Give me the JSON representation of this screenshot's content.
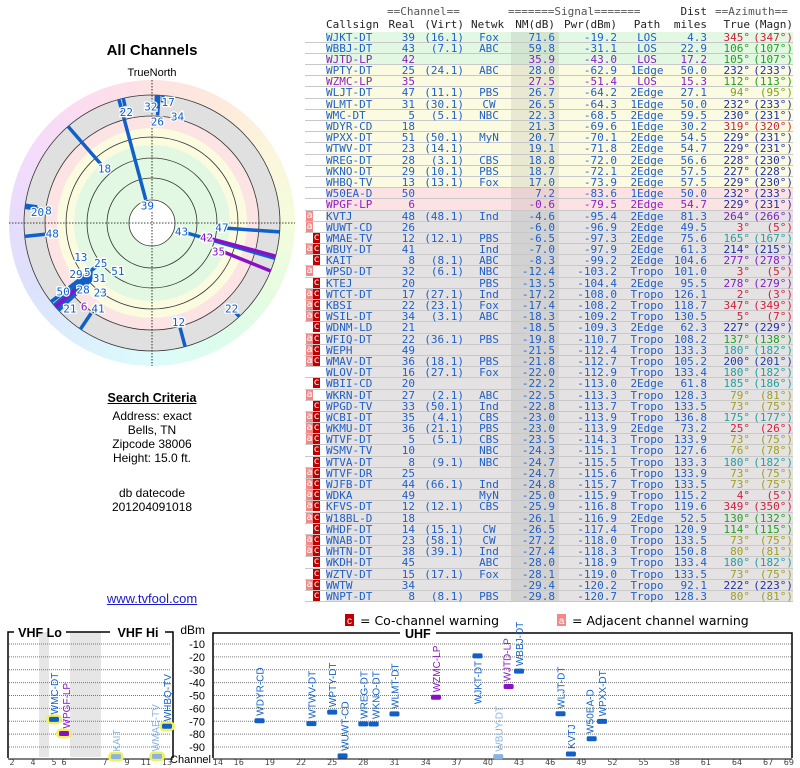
{
  "polar": {
    "title": "All Channels",
    "north_label": "TrueNorth"
  },
  "criteria": {
    "title": "Search Criteria",
    "lines": [
      "Address: exact",
      "Bells, TN",
      "Zipcode 38006",
      "Height: 15.0 ft."
    ],
    "db_label": "db datecode",
    "db_value": "201204091018",
    "link": "www.tvfool.com"
  },
  "table": {
    "group_headers": {
      "channel": "==Channel==",
      "signal": "=======Signal=======",
      "dist": "Dist",
      "azimuth": "==Azimuth=="
    },
    "columns": {
      "callsign": "Callsign",
      "real": "Real",
      "virt": "(Virt)",
      "netwk": "Netwk",
      "nm": "NM(dB)",
      "pwr": "Pwr(dBm)",
      "path": "Path",
      "miles": "miles",
      "true": "True",
      "magn": "(Magn)"
    },
    "rows": [
      {
        "flags": "",
        "call": "WJKT-DT",
        "real": "39",
        "virt": "(16.1)",
        "net": "Fox",
        "nm": "71.6",
        "pwr": "-19.2",
        "path": "LOS",
        "dist": "4.3",
        "true": "345°",
        "magn": "(347°)",
        "lp": false,
        "bg": "green",
        "azc": "#d02040"
      },
      {
        "flags": "",
        "call": "WBBJ-DT",
        "real": "43",
        "virt": "(7.1)",
        "net": "ABC",
        "nm": "59.8",
        "pwr": "-31.1",
        "path": "LOS",
        "dist": "22.9",
        "true": "106°",
        "magn": "(107°)",
        "lp": false,
        "bg": "green",
        "azc": "#20a020"
      },
      {
        "flags": "",
        "call": "WJTD-LP",
        "real": "42",
        "virt": "",
        "net": "",
        "nm": "35.9",
        "pwr": "-43.0",
        "path": "LOS",
        "dist": "17.2",
        "true": "105°",
        "magn": "(107°)",
        "lp": true,
        "bg": "green",
        "azc": "#20a020"
      },
      {
        "flags": "",
        "call": "WPTY-DT",
        "real": "25",
        "virt": "(24.1)",
        "net": "ABC",
        "nm": "28.0",
        "pwr": "-62.9",
        "path": "1Edge",
        "dist": "50.0",
        "true": "232°",
        "magn": "(233°)",
        "lp": false,
        "bg": "yellow",
        "azc": "#2030a0"
      },
      {
        "flags": "",
        "call": "WZMC-LP",
        "real": "35",
        "virt": "",
        "net": "",
        "nm": "27.5",
        "pwr": "-51.4",
        "path": "LOS",
        "dist": "15.3",
        "true": "112°",
        "magn": "(113°)",
        "lp": true,
        "bg": "yellow",
        "azc": "#20a020"
      },
      {
        "flags": "",
        "call": "WLJT-DT",
        "real": "47",
        "virt": "(11.1)",
        "net": "PBS",
        "nm": "26.7",
        "pwr": "-64.2",
        "path": "2Edge",
        "dist": "27.1",
        "true": "94°",
        "magn": "(95°)",
        "lp": false,
        "bg": "yellow",
        "azc": "#80a020"
      },
      {
        "flags": "",
        "call": "WLMT-DT",
        "real": "31",
        "virt": "(30.1)",
        "net": "CW",
        "nm": "26.5",
        "pwr": "-64.3",
        "path": "1Edge",
        "dist": "50.0",
        "true": "232°",
        "magn": "(233°)",
        "lp": false,
        "bg": "yellow",
        "azc": "#2030a0"
      },
      {
        "flags": "",
        "call": "WMC-DT",
        "real": "5",
        "virt": "(5.1)",
        "net": "NBC",
        "nm": "22.3",
        "pwr": "-68.5",
        "path": "2Edge",
        "dist": "59.5",
        "true": "230°",
        "magn": "(231°)",
        "lp": false,
        "bg": "yellow",
        "azc": "#2030a0"
      },
      {
        "flags": "",
        "call": "WDYR-CD",
        "real": "18",
        "virt": "",
        "net": "",
        "nm": "21.3",
        "pwr": "-69.6",
        "path": "1Edge",
        "dist": "30.2",
        "true": "319°",
        "magn": "(320°)",
        "lp": false,
        "bg": "yellow",
        "azc": "#d02040"
      },
      {
        "flags": "",
        "call": "WPXX-DT",
        "real": "51",
        "virt": "(50.1)",
        "net": "MyN",
        "nm": "20.7",
        "pwr": "-70.1",
        "path": "2Edge",
        "dist": "54.5",
        "true": "229°",
        "magn": "(231°)",
        "lp": false,
        "bg": "yellow",
        "azc": "#2030a0"
      },
      {
        "flags": "",
        "call": "WTWV-DT",
        "real": "23",
        "virt": "(14.1)",
        "net": "",
        "nm": "19.1",
        "pwr": "-71.8",
        "path": "2Edge",
        "dist": "54.7",
        "true": "229°",
        "magn": "(231°)",
        "lp": false,
        "bg": "yellow",
        "azc": "#2030a0"
      },
      {
        "flags": "",
        "call": "WREG-DT",
        "real": "28",
        "virt": "(3.1)",
        "net": "CBS",
        "nm": "18.8",
        "pwr": "-72.0",
        "path": "2Edge",
        "dist": "56.6",
        "true": "228°",
        "magn": "(230°)",
        "lp": false,
        "bg": "yellow",
        "azc": "#2030a0"
      },
      {
        "flags": "",
        "call": "WKNO-DT",
        "real": "29",
        "virt": "(10.1)",
        "net": "PBS",
        "nm": "18.7",
        "pwr": "-72.1",
        "path": "2Edge",
        "dist": "57.5",
        "true": "227°",
        "magn": "(228°)",
        "lp": false,
        "bg": "yellow",
        "azc": "#2030a0"
      },
      {
        "flags": "",
        "call": "WHBQ-TV",
        "real": "13",
        "virt": "(13.1)",
        "net": "Fox",
        "nm": "17.0",
        "pwr": "-73.9",
        "path": "2Edge",
        "dist": "57.5",
        "true": "229°",
        "magn": "(230°)",
        "lp": false,
        "bg": "yellow",
        "azc": "#2030a0"
      },
      {
        "flags": "",
        "call": "W50EA-D",
        "real": "50",
        "virt": "",
        "net": "",
        "nm": "7.2",
        "pwr": "-83.6",
        "path": "1Edge",
        "dist": "50.0",
        "true": "232°",
        "magn": "(233°)",
        "lp": false,
        "bg": "pink",
        "azc": "#2030a0"
      },
      {
        "flags": "",
        "call": "WPGF-LP",
        "real": "6",
        "virt": "",
        "net": "",
        "nm": "-0.6",
        "pwr": "-79.5",
        "path": "2Edge",
        "dist": "54.7",
        "true": "229°",
        "magn": "(231°)",
        "lp": true,
        "bg": "pink",
        "azc": "#2030a0"
      },
      {
        "flags": "a",
        "call": "KVTJ",
        "real": "48",
        "virt": "(48.1)",
        "net": "Ind",
        "nm": "-4.6",
        "pwr": "-95.4",
        "path": "2Edge",
        "dist": "81.3",
        "true": "264°",
        "magn": "(266°)",
        "lp": false,
        "bg": "grey",
        "azc": "#8020c0"
      },
      {
        "flags": "a",
        "call": "WUWT-CD",
        "real": "26",
        "virt": "",
        "net": "",
        "nm": "-6.0",
        "pwr": "-96.9",
        "path": "2Edge",
        "dist": "49.5",
        "true": "3°",
        "magn": "(5°)",
        "lp": false,
        "bg": "grey",
        "azc": "#d02040"
      },
      {
        "flags": "c",
        "call": "WMAE-TV",
        "real": "12",
        "virt": "(12.1)",
        "net": "PBS",
        "nm": "-6.5",
        "pwr": "-97.3",
        "path": "2Edge",
        "dist": "75.6",
        "true": "165°",
        "magn": "(167°)",
        "lp": false,
        "bg": "grey",
        "azc": "#20a0a0"
      },
      {
        "flags": "ac",
        "call": "WBUY-DT",
        "real": "41",
        "virt": "",
        "net": "Ind",
        "nm": "-7.0",
        "pwr": "-97.9",
        "path": "2Edge",
        "dist": "61.3",
        "true": "214°",
        "magn": "(215°)",
        "lp": false,
        "bg": "grey",
        "azc": "#2030a0"
      },
      {
        "flags": "c",
        "call": "KAIT",
        "real": "8",
        "virt": "(8.1)",
        "net": "ABC",
        "nm": "-8.3",
        "pwr": "-99.2",
        "path": "2Edge",
        "dist": "104.6",
        "true": "277°",
        "magn": "(278°)",
        "lp": false,
        "bg": "grey",
        "azc": "#8020c0"
      },
      {
        "flags": "a",
        "call": "WPSD-DT",
        "real": "32",
        "virt": "(6.1)",
        "net": "NBC",
        "nm": "-12.4",
        "pwr": "-103.2",
        "path": "Tropo",
        "dist": "101.0",
        "true": "3°",
        "magn": "(5°)",
        "lp": false,
        "bg": "grey",
        "azc": "#d02040"
      },
      {
        "flags": "c",
        "call": "KTEJ",
        "real": "20",
        "virt": "",
        "net": "PBS",
        "nm": "-13.5",
        "pwr": "-104.4",
        "path": "2Edge",
        "dist": "95.5",
        "true": "278°",
        "magn": "(279°)",
        "lp": false,
        "bg": "grey",
        "azc": "#8020c0"
      },
      {
        "flags": "ac",
        "call": "WTCT-DT",
        "real": "17",
        "virt": "(27.1)",
        "net": "Ind",
        "nm": "-17.2",
        "pwr": "-108.0",
        "path": "Tropo",
        "dist": "126.1",
        "true": "2°",
        "magn": "(3°)",
        "lp": false,
        "bg": "grey",
        "azc": "#d02040"
      },
      {
        "flags": "ac",
        "call": "KBSI",
        "real": "22",
        "virt": "(23.1)",
        "net": "Fox",
        "nm": "-17.4",
        "pwr": "-108.2",
        "path": "Tropo",
        "dist": "118.7",
        "true": "347°",
        "magn": "(349°)",
        "lp": false,
        "bg": "grey",
        "azc": "#d02040"
      },
      {
        "flags": "ac",
        "call": "WSIL-DT",
        "real": "34",
        "virt": "(3.1)",
        "net": "ABC",
        "nm": "-18.3",
        "pwr": "-109.2",
        "path": "Tropo",
        "dist": "130.5",
        "true": "5°",
        "magn": "(7°)",
        "lp": false,
        "bg": "grey",
        "azc": "#d02040"
      },
      {
        "flags": "c",
        "call": "WDNM-LD",
        "real": "21",
        "virt": "",
        "net": "",
        "nm": "-18.5",
        "pwr": "-109.3",
        "path": "2Edge",
        "dist": "62.3",
        "true": "227°",
        "magn": "(229°)",
        "lp": false,
        "bg": "grey",
        "azc": "#2030a0"
      },
      {
        "flags": "ac",
        "call": "WFIQ-DT",
        "real": "22",
        "virt": "(36.1)",
        "net": "PBS",
        "nm": "-19.8",
        "pwr": "-110.7",
        "path": "Tropo",
        "dist": "108.2",
        "true": "137°",
        "magn": "(138°)",
        "lp": false,
        "bg": "grey",
        "azc": "#20a020"
      },
      {
        "flags": "ac",
        "call": "WEPH",
        "real": "49",
        "virt": "",
        "net": "",
        "nm": "-21.5",
        "pwr": "-112.4",
        "path": "Tropo",
        "dist": "133.3",
        "true": "180°",
        "magn": "(182°)",
        "lp": false,
        "bg": "grey",
        "azc": "#20a0a0"
      },
      {
        "flags": "ac",
        "call": "WMAV-DT",
        "real": "36",
        "virt": "(18.1)",
        "net": "PBS",
        "nm": "-21.8",
        "pwr": "-112.7",
        "path": "Tropo",
        "dist": "105.2",
        "true": "200°",
        "magn": "(201°)",
        "lp": false,
        "bg": "grey",
        "azc": "#2040a0"
      },
      {
        "flags": "",
        "call": "WLOV-DT",
        "real": "16",
        "virt": "(27.1)",
        "net": "Fox",
        "nm": "-22.0",
        "pwr": "-112.9",
        "path": "Tropo",
        "dist": "133.4",
        "true": "180°",
        "magn": "(182°)",
        "lp": false,
        "bg": "grey",
        "azc": "#20a0a0"
      },
      {
        "flags": "c",
        "call": "WBII-CD",
        "real": "20",
        "virt": "",
        "net": "",
        "nm": "-22.2",
        "pwr": "-113.0",
        "path": "2Edge",
        "dist": "61.8",
        "true": "185°",
        "magn": "(186°)",
        "lp": false,
        "bg": "grey",
        "azc": "#20a0a0"
      },
      {
        "flags": "a",
        "call": "WKRN-DT",
        "real": "27",
        "virt": "(2.1)",
        "net": "ABC",
        "nm": "-22.5",
        "pwr": "-113.3",
        "path": "Tropo",
        "dist": "128.3",
        "true": "79°",
        "magn": "(81°)",
        "lp": false,
        "bg": "grey",
        "azc": "#a0a020"
      },
      {
        "flags": "c",
        "call": "WPGD-TV",
        "real": "33",
        "virt": "(50.1)",
        "net": "Ind",
        "nm": "-22.8",
        "pwr": "-113.7",
        "path": "Tropo",
        "dist": "133.5",
        "true": "73°",
        "magn": "(75°)",
        "lp": false,
        "bg": "grey",
        "azc": "#a0a020"
      },
      {
        "flags": "ac",
        "call": "WCBI-DT",
        "real": "35",
        "virt": "(4.1)",
        "net": "CBS",
        "nm": "-23.0",
        "pwr": "-113.9",
        "path": "Tropo",
        "dist": "136.8",
        "true": "175°",
        "magn": "(177°)",
        "lp": false,
        "bg": "grey",
        "azc": "#20a0a0"
      },
      {
        "flags": "ac",
        "call": "WKMU-DT",
        "real": "36",
        "virt": "(21.1)",
        "net": "PBS",
        "nm": "-23.0",
        "pwr": "-113.9",
        "path": "2Edge",
        "dist": "73.2",
        "true": "25°",
        "magn": "(26°)",
        "lp": false,
        "bg": "grey",
        "azc": "#d02040"
      },
      {
        "flags": "ac",
        "call": "WTVF-DT",
        "real": "5",
        "virt": "(5.1)",
        "net": "CBS",
        "nm": "-23.5",
        "pwr": "-114.3",
        "path": "Tropo",
        "dist": "133.9",
        "true": "73°",
        "magn": "(75°)",
        "lp": false,
        "bg": "grey",
        "azc": "#a0a020"
      },
      {
        "flags": "c",
        "call": "WSMV-TV",
        "real": "10",
        "virt": "",
        "net": "NBC",
        "nm": "-24.3",
        "pwr": "-115.1",
        "path": "Tropo",
        "dist": "127.6",
        "true": "76°",
        "magn": "(78°)",
        "lp": false,
        "bg": "grey",
        "azc": "#a0a020"
      },
      {
        "flags": "c",
        "call": "WTVA-DT",
        "real": "8",
        "virt": "(9.1)",
        "net": "NBC",
        "nm": "-24.7",
        "pwr": "-115.5",
        "path": "Tropo",
        "dist": "133.3",
        "true": "180°",
        "magn": "(182°)",
        "lp": false,
        "bg": "grey",
        "azc": "#20a0a0"
      },
      {
        "flags": "ac",
        "call": "WTVF-DR",
        "real": "25",
        "virt": "",
        "net": "",
        "nm": "-24.7",
        "pwr": "-115.6",
        "path": "Tropo",
        "dist": "133.9",
        "true": "73°",
        "magn": "(75°)",
        "lp": false,
        "bg": "grey",
        "azc": "#a0a020"
      },
      {
        "flags": "ac",
        "call": "WJFB-DT",
        "real": "44",
        "virt": "(66.1)",
        "net": "Ind",
        "nm": "-24.8",
        "pwr": "-115.7",
        "path": "Tropo",
        "dist": "133.5",
        "true": "73°",
        "magn": "(75°)",
        "lp": false,
        "bg": "grey",
        "azc": "#a0a020"
      },
      {
        "flags": "ac",
        "call": "WDKA",
        "real": "49",
        "virt": "",
        "net": "MyN",
        "nm": "-25.0",
        "pwr": "-115.9",
        "path": "Tropo",
        "dist": "115.2",
        "true": "4°",
        "magn": "(5°)",
        "lp": false,
        "bg": "grey",
        "azc": "#d02040"
      },
      {
        "flags": "ac",
        "call": "KFVS-DT",
        "real": "12",
        "virt": "(12.1)",
        "net": "CBS",
        "nm": "-25.9",
        "pwr": "-116.8",
        "path": "Tropo",
        "dist": "119.6",
        "true": "349°",
        "magn": "(350°)",
        "lp": false,
        "bg": "grey",
        "azc": "#d02040"
      },
      {
        "flags": "ac",
        "call": "W18BL-D",
        "real": "18",
        "virt": "",
        "net": "",
        "nm": "-26.1",
        "pwr": "-116.9",
        "path": "2Edge",
        "dist": "52.5",
        "true": "130°",
        "magn": "(132°)",
        "lp": false,
        "bg": "grey",
        "azc": "#20a020"
      },
      {
        "flags": "c",
        "call": "WHDF-DT",
        "real": "14",
        "virt": "(15.1)",
        "net": "CW",
        "nm": "-26.5",
        "pwr": "-117.4",
        "path": "Tropo",
        "dist": "120.9",
        "true": "114°",
        "magn": "(115°)",
        "lp": false,
        "bg": "grey",
        "azc": "#20a020"
      },
      {
        "flags": "ac",
        "call": "WNAB-DT",
        "real": "23",
        "virt": "(58.1)",
        "net": "CW",
        "nm": "-27.2",
        "pwr": "-118.0",
        "path": "Tropo",
        "dist": "133.5",
        "true": "73°",
        "magn": "(75°)",
        "lp": false,
        "bg": "grey",
        "azc": "#a0a020"
      },
      {
        "flags": "ac",
        "call": "WHTN-DT",
        "real": "38",
        "virt": "(39.1)",
        "net": "Ind",
        "nm": "-27.4",
        "pwr": "-118.3",
        "path": "Tropo",
        "dist": "150.8",
        "true": "80°",
        "magn": "(81°)",
        "lp": false,
        "bg": "grey",
        "azc": "#a0a020"
      },
      {
        "flags": "c",
        "call": "WKDH-DT",
        "real": "45",
        "virt": "",
        "net": "ABC",
        "nm": "-28.0",
        "pwr": "-118.9",
        "path": "Tropo",
        "dist": "133.4",
        "true": "180°",
        "magn": "(182°)",
        "lp": false,
        "bg": "grey",
        "azc": "#20a0a0"
      },
      {
        "flags": "c",
        "call": "WZTV-DT",
        "real": "15",
        "virt": "(17.1)",
        "net": "Fox",
        "nm": "-28.1",
        "pwr": "-119.0",
        "path": "Tropo",
        "dist": "133.5",
        "true": "73°",
        "magn": "(75°)",
        "lp": false,
        "bg": "grey",
        "azc": "#a0a020"
      },
      {
        "flags": "ac",
        "call": "WWTW",
        "real": "34",
        "virt": "",
        "net": "",
        "nm": "-29.4",
        "pwr": "-120.2",
        "path": "Tropo",
        "dist": "92.1",
        "true": "222°",
        "magn": "(223°)",
        "lp": false,
        "bg": "grey",
        "azc": "#2030a0"
      },
      {
        "flags": "c",
        "call": "WNPT-DT",
        "real": "8",
        "virt": "(8.1)",
        "net": "PBS",
        "nm": "-29.8",
        "pwr": "-120.7",
        "path": "Tropo",
        "dist": "128.3",
        "true": "80°",
        "magn": "(81°)",
        "lp": false,
        "bg": "grey",
        "azc": "#a0a020"
      }
    ]
  },
  "legend": {
    "co_flag": "c",
    "co_text": "= Co-channel warning",
    "adj_flag": "a",
    "adj_text": "= Adjacent channel warning"
  },
  "spectrum": {
    "vhf_lo": "VHF Lo",
    "vhf_hi": "VHF Hi",
    "uhf": "UHF",
    "unit": "dBm",
    "channel_label": "Channel",
    "dbm_ticks": [
      "-10",
      "-20",
      "-30",
      "-40",
      "-50",
      "-60",
      "-70",
      "-80",
      "-90"
    ],
    "vhf_ticks": [
      "2",
      "4",
      "5",
      "6",
      "7",
      "9",
      "11",
      "13"
    ],
    "uhf_ticks": [
      "14",
      "16",
      "19",
      "22",
      "25",
      "28",
      "31",
      "34",
      "37",
      "40",
      "43",
      "46",
      "49",
      "52",
      "55",
      "58",
      "61",
      "64",
      "67",
      "69"
    ]
  },
  "colors": {
    "callsign": "#2060c8",
    "lp": "#8a20c8",
    "co_channel": "#c00000",
    "adjacent": "#f08a8a"
  }
}
